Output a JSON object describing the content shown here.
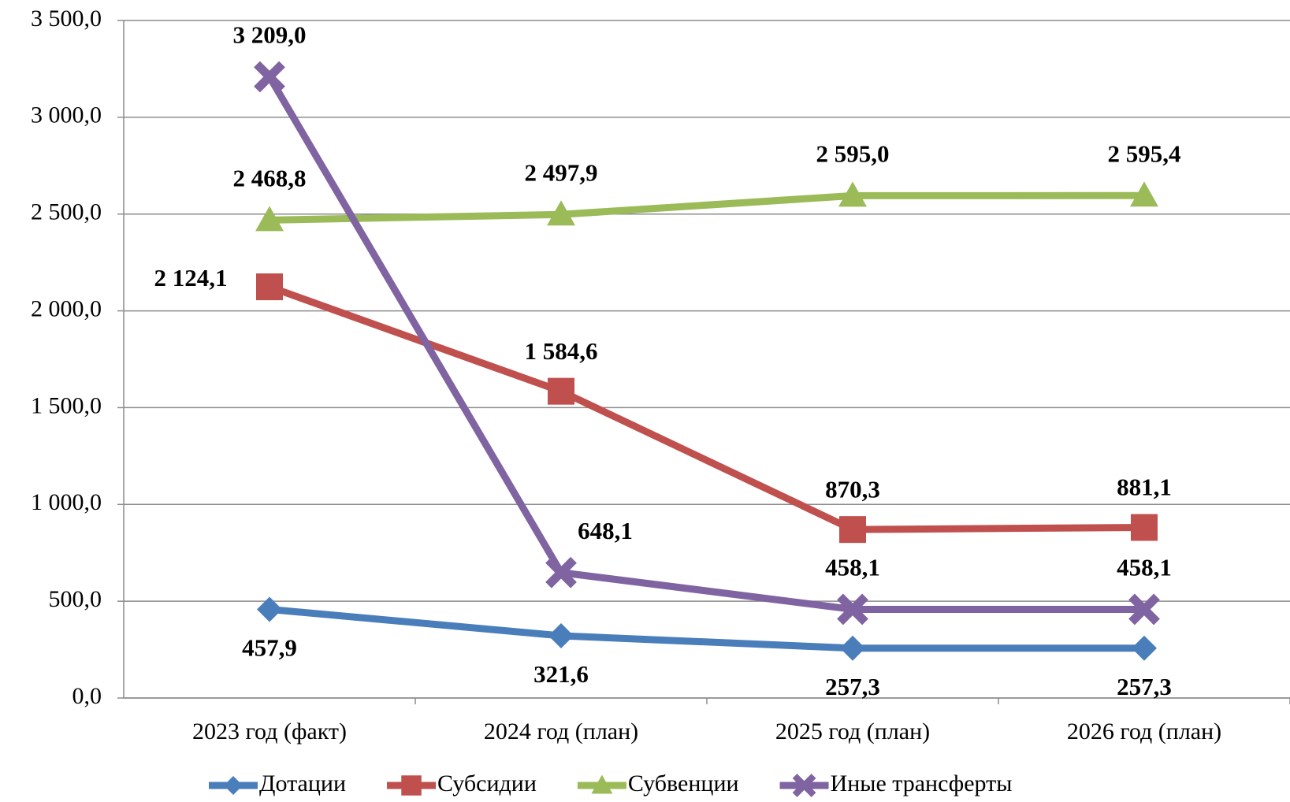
{
  "chart_data": {
    "type": "line",
    "categories": [
      "2023 год (факт)",
      "2024 год (план)",
      "2025 год (план)",
      "2026 год (план)"
    ],
    "series": [
      {
        "name": "Дотации",
        "color": "#4a7ebb",
        "marker": "diamond",
        "values": [
          457.9,
          321.6,
          257.3,
          257.3
        ],
        "value_labels": [
          "457,9",
          "321,6",
          "257,3",
          "257,3"
        ]
      },
      {
        "name": "Субсидии",
        "color": "#c0504d",
        "marker": "square",
        "values": [
          2124.1,
          1584.6,
          870.3,
          881.1
        ],
        "value_labels": [
          "2 124,1",
          "1 584,6",
          "870,3",
          "881,1"
        ]
      },
      {
        "name": "Субвенции",
        "color": "#9bbb59",
        "marker": "triangle",
        "values": [
          2468.8,
          2497.9,
          2595.0,
          2595.4
        ],
        "value_labels": [
          "2 468,8",
          "2 497,9",
          "2 595,0",
          "2 595,4"
        ]
      },
      {
        "name": "Иные трансферты",
        "color": "#8064a2",
        "marker": "x",
        "values": [
          3209.0,
          648.1,
          458.1,
          458.1
        ],
        "value_labels": [
          "3 209,0",
          "648,1",
          "458,1",
          "458,1"
        ]
      }
    ],
    "ylim": [
      0,
      3500
    ],
    "yticks": [
      {
        "value": 0,
        "label": "0,0"
      },
      {
        "value": 500,
        "label": "500,0"
      },
      {
        "value": 1000,
        "label": "1 000,0"
      },
      {
        "value": 1500,
        "label": "1 500,0"
      },
      {
        "value": 2000,
        "label": "2 000,0"
      },
      {
        "value": 2500,
        "label": "2 500,0"
      },
      {
        "value": 3000,
        "label": "3 000,0"
      },
      {
        "value": 3500,
        "label": "3 500,0"
      }
    ],
    "grid": true,
    "legend": "bottom"
  }
}
